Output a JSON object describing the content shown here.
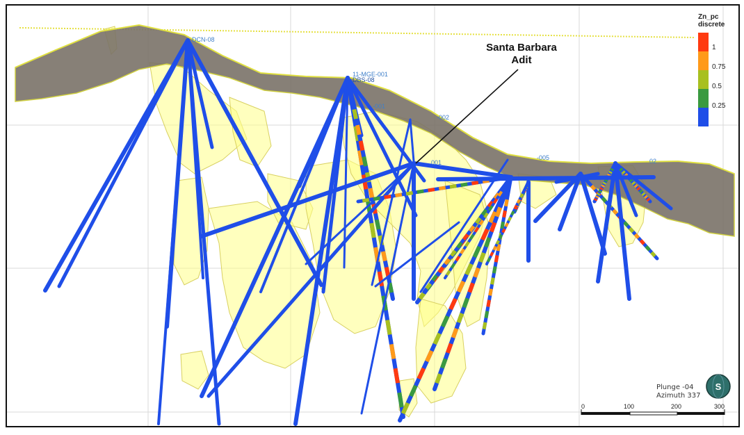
{
  "annotation": {
    "title_line1": "Santa Barbara",
    "title_line2": "Adit"
  },
  "legend": {
    "title_line1": "Zn_pc",
    "title_line2": "discrete",
    "labels": [
      "1",
      "0.75",
      "0.5",
      "0.25"
    ],
    "colors": [
      "#ff3a10",
      "#ff9a1a",
      "#a8c020",
      "#3a9a40",
      "#1f4ee8"
    ]
  },
  "view": {
    "plunge": "Plunge -04",
    "azimuth": "Azimuth 337",
    "compass_label": "S"
  },
  "scale_bar": {
    "labels": [
      "0",
      "100",
      "200",
      "300"
    ]
  },
  "drillhole_labels": [
    "DCN-08",
    "11-MGE-001",
    "DBS-08",
    "-001",
    "-002",
    "001",
    "-005",
    "02"
  ],
  "colors": {
    "hole": "#1f4ee8",
    "solid": "#ffff88",
    "topo": "#7a7268",
    "grid": "#d8d8d8"
  }
}
